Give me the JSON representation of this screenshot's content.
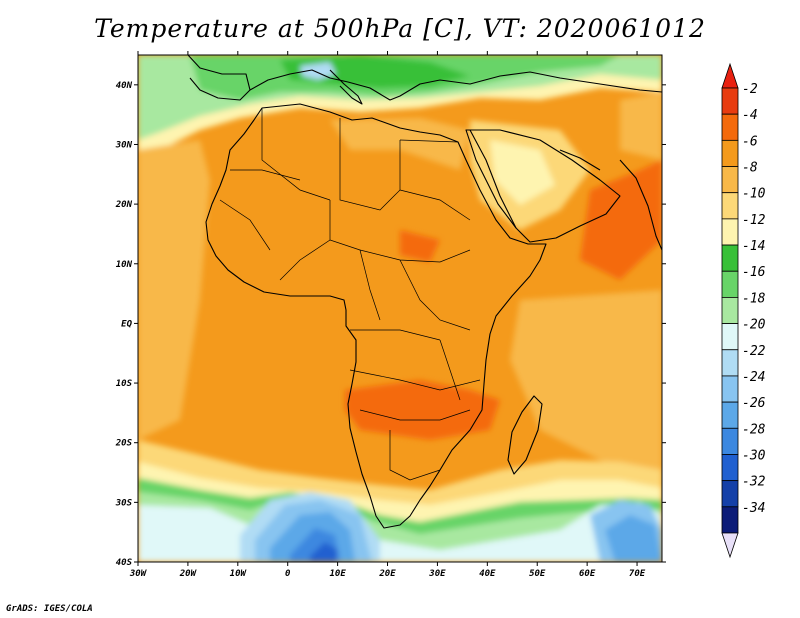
{
  "title": "Temperature at 500hPa [C], VT: 2020061012",
  "credit": "GrADS: IGES/COLA",
  "map": {
    "projection": "lat-lon",
    "lon_range": [
      -30,
      75
    ],
    "lat_range": [
      -40,
      45
    ],
    "lat_ticks": [
      {
        "value": 40,
        "label": "40N"
      },
      {
        "value": 30,
        "label": "30N"
      },
      {
        "value": 20,
        "label": "20N"
      },
      {
        "value": 10,
        "label": "10N"
      },
      {
        "value": 0,
        "label": "EQ"
      },
      {
        "value": -10,
        "label": "10S"
      },
      {
        "value": -20,
        "label": "20S"
      },
      {
        "value": -30,
        "label": "30S"
      },
      {
        "value": -40,
        "label": "40S"
      }
    ],
    "lon_ticks": [
      {
        "value": -30,
        "label": "30W"
      },
      {
        "value": -20,
        "label": "20W"
      },
      {
        "value": -10,
        "label": "10W"
      },
      {
        "value": 0,
        "label": "0"
      },
      {
        "value": 10,
        "label": "10E"
      },
      {
        "value": 20,
        "label": "20E"
      },
      {
        "value": 30,
        "label": "30E"
      },
      {
        "value": 40,
        "label": "40E"
      },
      {
        "value": 50,
        "label": "50E"
      },
      {
        "value": 60,
        "label": "60E"
      },
      {
        "value": 70,
        "label": "70E"
      }
    ]
  },
  "colorbar": {
    "levels": [
      {
        "label": "-2",
        "color": "#e83c10"
      },
      {
        "label": "-4",
        "color": "#f46a0c"
      },
      {
        "label": "-6",
        "color": "#f49a1c"
      },
      {
        "label": "-8",
        "color": "#f8b848"
      },
      {
        "label": "-10",
        "color": "#fcd878"
      },
      {
        "label": "-12",
        "color": "#fef4b0"
      },
      {
        "label": "-14",
        "color": "#38c038"
      },
      {
        "label": "-16",
        "color": "#68d468"
      },
      {
        "label": "-18",
        "color": "#a8e8a0"
      },
      {
        "label": "-20",
        "color": "#e0f8f8"
      },
      {
        "label": "-22",
        "color": "#b0dcf4"
      },
      {
        "label": "-24",
        "color": "#88c4f0"
      },
      {
        "label": "-26",
        "color": "#5ca8e8"
      },
      {
        "label": "-28",
        "color": "#3c88e0"
      },
      {
        "label": "-30",
        "color": "#2060d0"
      },
      {
        "label": "-32",
        "color": "#1440a8"
      },
      {
        "label": "-34",
        "color": "#0c1c78"
      }
    ],
    "top_cap_color": "#e82010",
    "bottom_cap_color": "#e8e0f8"
  }
}
